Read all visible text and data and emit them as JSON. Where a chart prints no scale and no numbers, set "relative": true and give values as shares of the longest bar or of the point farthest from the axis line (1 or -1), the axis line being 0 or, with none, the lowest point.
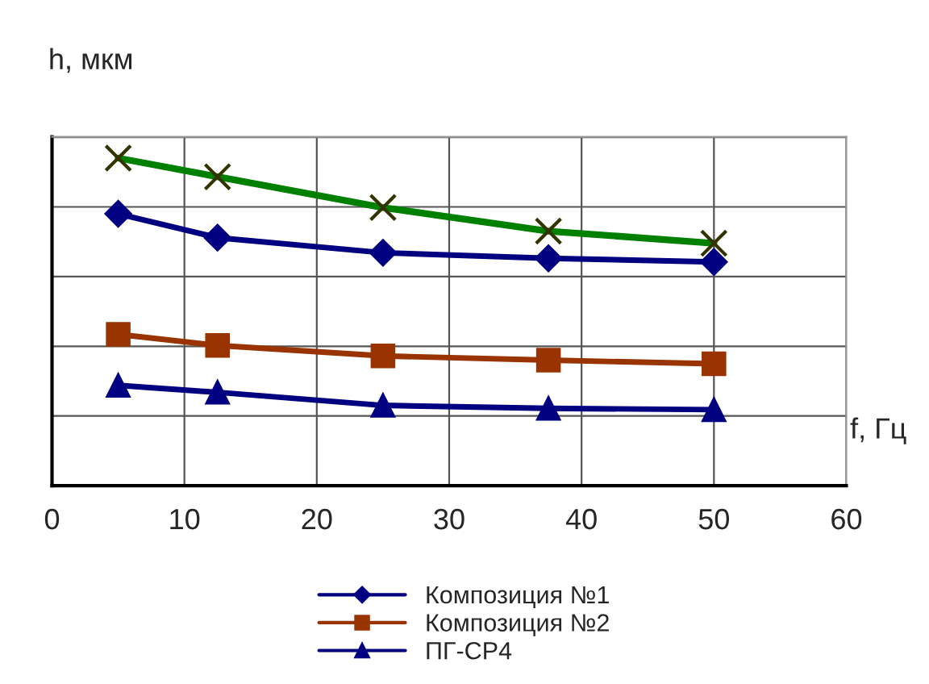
{
  "chart_data": {
    "type": "line",
    "ylabel": "h, мкм",
    "xlabel": "f, Гц",
    "relative": true,
    "x": [
      5,
      12.5,
      25,
      37.5,
      50
    ],
    "series": [
      {
        "name": "Композиция №1",
        "color": "#000080",
        "marker": "diamond",
        "values": [
          0.83,
          0.757,
          0.711,
          0.694,
          0.683
        ]
      },
      {
        "name": "Композиция №2",
        "color": "#993300",
        "marker": "square",
        "values": [
          0.462,
          0.428,
          0.396,
          0.383,
          0.372
        ]
      },
      {
        "name": "ПГ-СР4",
        "color": "#000080",
        "marker": "triangle",
        "values": [
          0.306,
          0.285,
          0.245,
          0.236,
          0.232
        ]
      },
      {
        "color": "#008000",
        "marker": "cross",
        "values": [
          1,
          0.943,
          0.849,
          0.777,
          0.74
        ]
      }
    ],
    "xlim": [
      0,
      60
    ],
    "xticks": [
      0,
      10,
      20,
      30,
      40,
      50,
      60
    ],
    "grid": true,
    "legend": "bottom"
  }
}
